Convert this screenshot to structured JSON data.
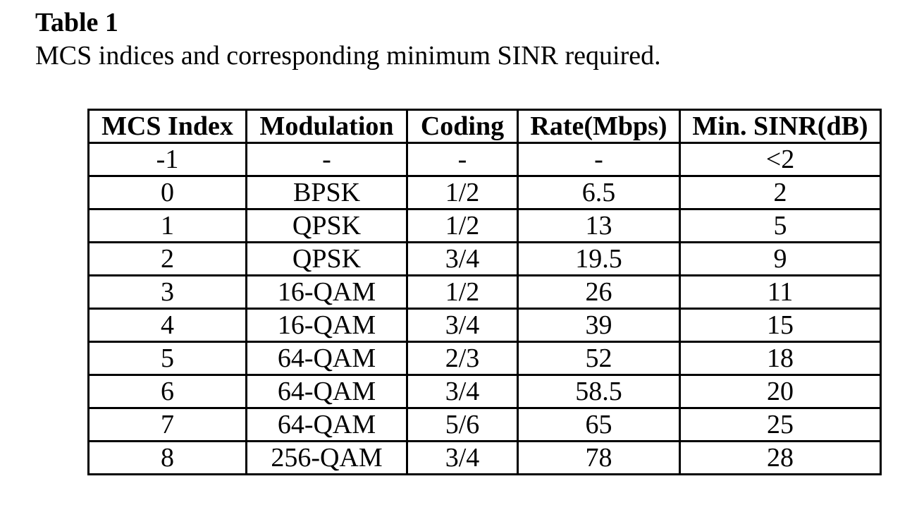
{
  "caption": {
    "label": "Table 1",
    "text": "MCS indices and corresponding minimum SINR required."
  },
  "table": {
    "headers": [
      "MCS Index",
      "Modulation",
      "Coding",
      "Rate(Mbps)",
      "Min. SINR(dB)"
    ],
    "rows": [
      [
        "-1",
        "-",
        "-",
        "-",
        "<2"
      ],
      [
        "0",
        "BPSK",
        "1/2",
        "6.5",
        "2"
      ],
      [
        "1",
        "QPSK",
        "1/2",
        "13",
        "5"
      ],
      [
        "2",
        "QPSK",
        "3/4",
        "19.5",
        "9"
      ],
      [
        "3",
        "16-QAM",
        "1/2",
        "26",
        "11"
      ],
      [
        "4",
        "16-QAM",
        "3/4",
        "39",
        "15"
      ],
      [
        "5",
        "64-QAM",
        "2/3",
        "52",
        "18"
      ],
      [
        "6",
        "64-QAM",
        "3/4",
        "58.5",
        "20"
      ],
      [
        "7",
        "64-QAM",
        "5/6",
        "65",
        "25"
      ],
      [
        "8",
        "256-QAM",
        "3/4",
        "78",
        "28"
      ]
    ]
  }
}
